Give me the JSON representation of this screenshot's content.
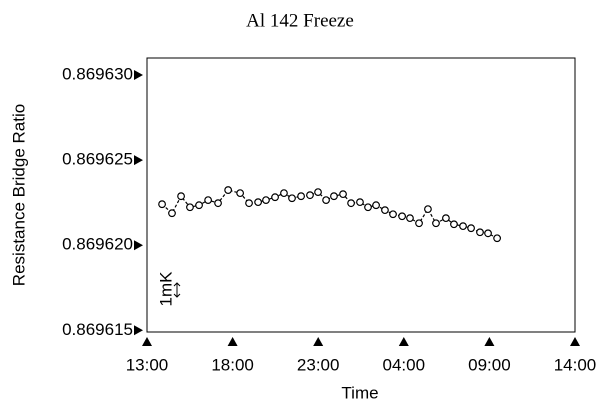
{
  "chart_data": {
    "type": "scatter",
    "title": "Al 142 Freeze",
    "x_label": "Time",
    "y_label": "Resistance Bridge Ratio",
    "annotation": "1mK",
    "xlim": [
      13,
      38
    ],
    "xticks": [
      {
        "value": 13,
        "label": "13:00"
      },
      {
        "value": 18,
        "label": "18:00"
      },
      {
        "value": 23,
        "label": "23:00"
      },
      {
        "value": 28,
        "label": "04:00"
      },
      {
        "value": 33,
        "label": "09:00"
      },
      {
        "value": 38,
        "label": "14:00"
      }
    ],
    "ylim": [
      0.8696149,
      0.869631
    ],
    "yticks": [
      {
        "value": 0.869615,
        "label": "0.869615"
      },
      {
        "value": 0.86962,
        "label": "0.869620"
      },
      {
        "value": 0.869625,
        "label": "0.869625"
      },
      {
        "value": 0.86963,
        "label": "0.869630"
      }
    ],
    "color": "#000000",
    "x": [
      13.88,
      14.46,
      14.99,
      15.51,
      16.04,
      16.57,
      17.15,
      17.74,
      18.44,
      18.96,
      19.49,
      19.95,
      20.48,
      21.0,
      21.47,
      22.0,
      22.52,
      22.99,
      23.46,
      23.92,
      24.45,
      24.92,
      25.44,
      25.91,
      26.38,
      26.9,
      27.37,
      27.9,
      28.36,
      28.89,
      29.41,
      29.88,
      30.46,
      30.93,
      31.46,
      31.93,
      32.45,
      32.92,
      33.45
    ],
    "values": [
      0.86962241,
      0.86962188,
      0.86962288,
      0.86962223,
      0.86962235,
      0.86962265,
      0.86962247,
      0.86962324,
      0.86962306,
      0.86962247,
      0.86962253,
      0.86962265,
      0.86962282,
      0.86962306,
      0.86962276,
      0.86962288,
      0.86962294,
      0.86962312,
      0.86962265,
      0.86962288,
      0.869623,
      0.86962247,
      0.86962253,
      0.86962223,
      0.86962235,
      0.86962206,
      0.86962182,
      0.8696217,
      0.86962159,
      0.86962129,
      0.86962212,
      0.86962129,
      0.86962159,
      0.86962123,
      0.86962112,
      0.869621,
      0.86962076,
      0.8696207,
      0.86962041
    ]
  }
}
